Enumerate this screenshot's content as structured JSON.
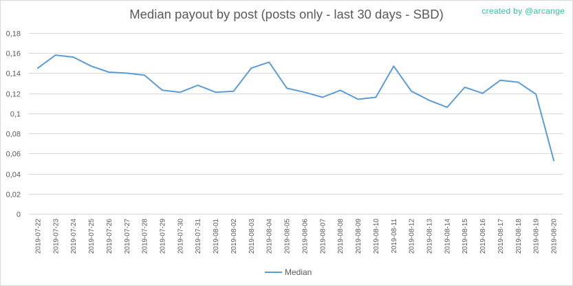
{
  "chart_data": {
    "type": "line",
    "title": "Median payout by post (posts only - last 30 days - SBD)",
    "xlabel": "",
    "ylabel": "",
    "ylim": [
      0,
      0.18
    ],
    "yticks": [
      "0",
      "0,02",
      "0,04",
      "0,06",
      "0,08",
      "0,1",
      "0,12",
      "0,14",
      "0,16",
      "0,18"
    ],
    "grid": true,
    "legend_position": "bottom",
    "categories": [
      "2019-07-22",
      "2019-07-23",
      "2019-07-24",
      "2019-07-25",
      "2019-07-26",
      "2019-07-27",
      "2019-07-28",
      "2019-07-29",
      "2019-07-30",
      "2019-07-31",
      "2019-08-01",
      "2019-08-02",
      "2019-08-03",
      "2019-08-04",
      "2019-08-05",
      "2019-08-06",
      "2019-08-07",
      "2019-08-08",
      "2019-08-09",
      "2019-08-10",
      "2019-08-11",
      "2019-08-12",
      "2019-08-13",
      "2019-08-14",
      "2019-08-15",
      "2019-08-16",
      "2019-08-17",
      "2019-08-18",
      "2019-08-19",
      "2019-08-20"
    ],
    "series": [
      {
        "name": "Median",
        "color": "#5b9bd5",
        "values": [
          0.145,
          0.158,
          0.156,
          0.147,
          0.141,
          0.14,
          0.138,
          0.123,
          0.121,
          0.128,
          0.121,
          0.122,
          0.145,
          0.151,
          0.125,
          0.121,
          0.116,
          0.123,
          0.114,
          0.116,
          0.147,
          0.122,
          0.113,
          0.106,
          0.126,
          0.12,
          0.133,
          0.131,
          0.119,
          0.053
        ]
      }
    ]
  },
  "credit": "created by @arcange"
}
